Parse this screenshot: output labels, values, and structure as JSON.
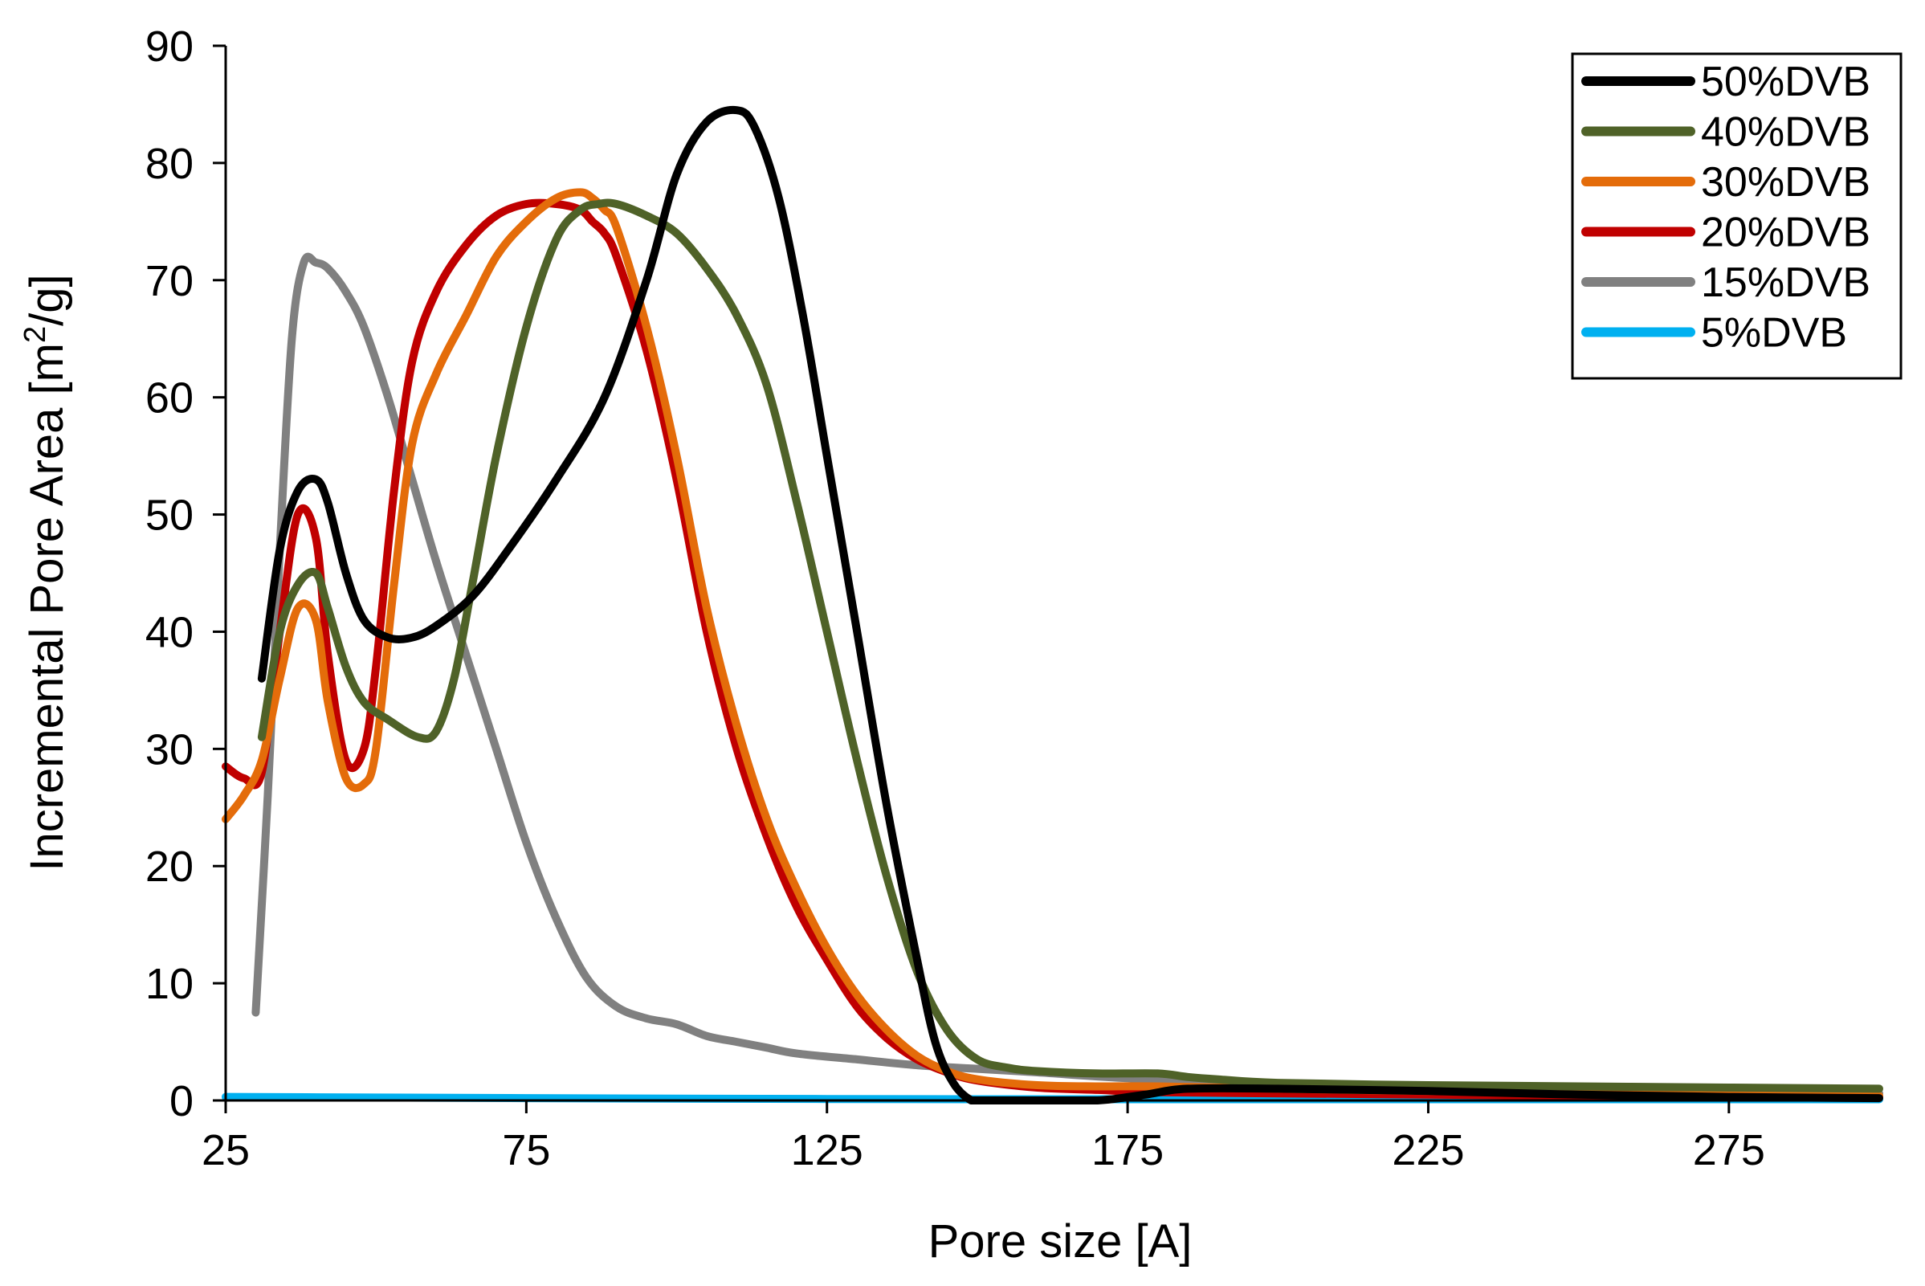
{
  "chart_data": {
    "type": "line",
    "title": "",
    "xlabel": "Pore size [A]",
    "ylabel_parts": [
      "Incremental Pore Area [m",
      "2",
      "/g]"
    ],
    "xlim": [
      25,
      300
    ],
    "ylim": [
      0,
      90
    ],
    "x_ticks": [
      25,
      75,
      125,
      175,
      225,
      275
    ],
    "y_ticks": [
      0,
      10,
      20,
      30,
      40,
      50,
      60,
      70,
      80,
      90
    ],
    "legend_position": "top-right",
    "series": [
      {
        "name": "50%DVB",
        "color": "#000000",
        "x": [
          31,
          34,
          37,
          40,
          42,
          45,
          48,
          52,
          56,
          60,
          66,
          72,
          80,
          88,
          95,
          100,
          105,
          110,
          113,
          117,
          121,
          125,
          130,
          135,
          140,
          143,
          146,
          149,
          151,
          155,
          160,
          170,
          178,
          185,
          200,
          225,
          250,
          275,
          300
        ],
        "y": [
          36,
          47,
          52,
          53,
          51,
          45,
          41,
          39.5,
          39.5,
          40.5,
          43,
          47,
          53,
          60,
          70,
          79,
          83.5,
          84.5,
          83,
          77,
          67,
          55,
          40,
          25,
          12,
          5,
          1.5,
          0,
          0,
          0,
          0,
          0,
          0.5,
          1,
          1,
          0.8,
          0.5,
          0.3,
          0.2
        ]
      },
      {
        "name": "40%DVB",
        "color": "#4f6228",
        "x": [
          31,
          34,
          37,
          40,
          42,
          45,
          48,
          52,
          57,
          60,
          63,
          66,
          70,
          75,
          80,
          84,
          87,
          90,
          95,
          100,
          105,
          110,
          115,
          120,
          125,
          130,
          135,
          140,
          145,
          150,
          155,
          160,
          170,
          180,
          185,
          190,
          200,
          225,
          250,
          275,
          300
        ],
        "y": [
          31,
          40,
          44,
          45,
          42,
          37,
          34,
          32.5,
          31,
          31.5,
          36,
          44,
          55,
          66,
          73.5,
          76,
          76.5,
          76.5,
          75.5,
          74,
          71,
          67,
          61,
          51,
          40,
          29,
          19,
          11,
          6,
          3.5,
          2.8,
          2.5,
          2.3,
          2.3,
          2,
          1.8,
          1.5,
          1.3,
          1.2,
          1.1,
          1.0
        ]
      },
      {
        "name": "30%DVB",
        "color": "#e46c0a",
        "x": [
          25,
          28,
          31,
          34,
          37,
          40,
          42,
          45,
          48,
          50,
          53,
          56,
          60,
          65,
          70,
          75,
          80,
          84,
          86,
          88,
          90,
          95,
          100,
          105,
          110,
          115,
          120,
          125,
          130,
          135,
          140,
          145,
          150,
          160,
          170,
          180,
          200,
          225,
          250,
          275,
          300
        ],
        "y": [
          24,
          26,
          29,
          36,
          42,
          41,
          34,
          27.5,
          27,
          30,
          44,
          56,
          62,
          67,
          72,
          75,
          77,
          77.5,
          77,
          76,
          74.5,
          66,
          55,
          42,
          32,
          24,
          18,
          13,
          9,
          6,
          3.8,
          2.5,
          1.8,
          1.3,
          1.2,
          1.2,
          1.0,
          0.8,
          0.6,
          0.5,
          0.4
        ]
      },
      {
        "name": "20%DVB",
        "color": "#c00000",
        "x": [
          25,
          28,
          31,
          34,
          37,
          40,
          42,
          45,
          48,
          50,
          53,
          56,
          60,
          65,
          70,
          75,
          80,
          84,
          86,
          88,
          90,
          95,
          100,
          105,
          110,
          115,
          120,
          125,
          130,
          135,
          140,
          145,
          150,
          160,
          170,
          180,
          200,
          225,
          250,
          275,
          300
        ],
        "y": [
          28.5,
          27.5,
          28,
          40,
          50,
          48,
          38,
          29,
          30,
          37,
          52,
          63,
          69,
          73,
          75.5,
          76.5,
          76.5,
          76,
          75,
          74,
          72,
          64,
          53,
          40,
          30,
          22.5,
          16.5,
          12,
          8,
          5.3,
          3.5,
          2.4,
          1.7,
          1.1,
          0.9,
          0.7,
          0.6,
          0.5,
          0.4,
          0.3,
          0.3
        ]
      },
      {
        "name": "15%DVB",
        "color": "#808080",
        "x": [
          30,
          32,
          34,
          36,
          38,
          40,
          42,
          45,
          48,
          52,
          56,
          60,
          65,
          70,
          75,
          80,
          85,
          90,
          95,
          100,
          105,
          110,
          115,
          120,
          130,
          140,
          150,
          160,
          175,
          200,
          225,
          250,
          275,
          300
        ],
        "y": [
          7.5,
          26,
          47,
          65,
          71.5,
          71.5,
          71,
          69,
          66,
          60,
          53,
          46,
          38,
          30,
          22,
          15.5,
          10.5,
          8,
          7,
          6.5,
          5.5,
          5,
          4.5,
          4,
          3.5,
          3,
          2.7,
          2.4,
          1.9,
          1.3,
          1.0,
          0.8,
          0.7,
          0.6
        ]
      },
      {
        "name": "5%DVB",
        "color": "#00b0f0",
        "x": [
          25,
          50,
          75,
          100,
          125,
          150,
          175,
          200,
          225,
          250,
          275,
          300
        ],
        "y": [
          0.3,
          0.25,
          0.2,
          0.15,
          0.12,
          0.1,
          0.1,
          0.1,
          0.1,
          0.1,
          0.1,
          0.1
        ]
      }
    ]
  }
}
